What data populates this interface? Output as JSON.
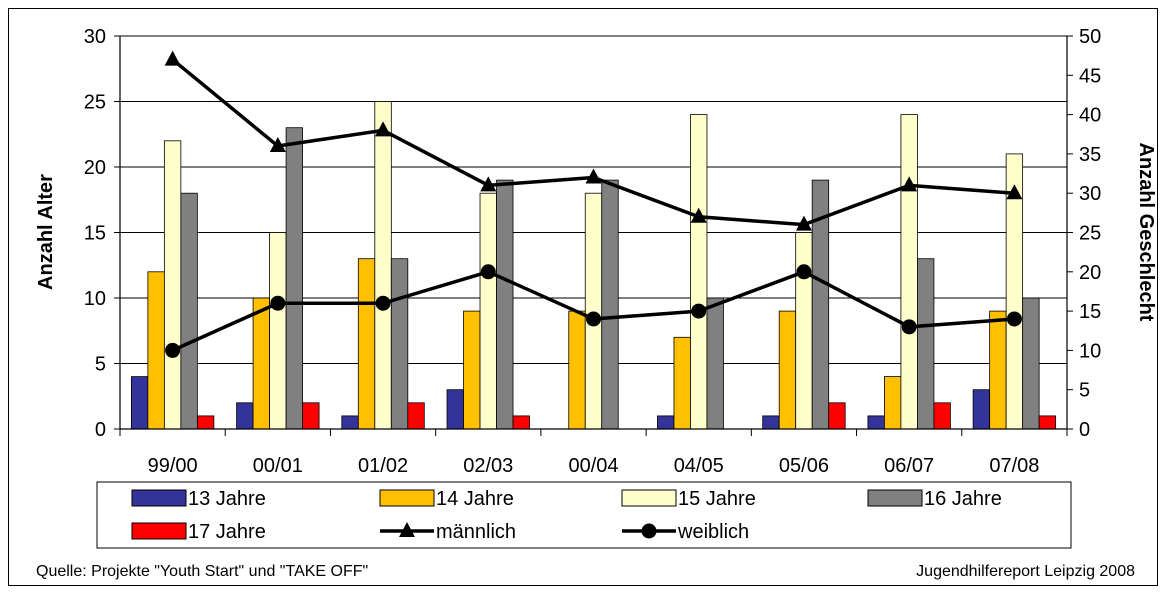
{
  "chart_data": {
    "type": "bar",
    "categories": [
      "99/00",
      "00/01",
      "01/02",
      "02/03",
      "00/04",
      "04/05",
      "05/06",
      "06/07",
      "07/08"
    ],
    "ylabel": "Anzahl Alter",
    "y2label": "Anzahl Geschlecht",
    "ylim": [
      0,
      30
    ],
    "y2lim": [
      0,
      50
    ],
    "yticks": [
      "0",
      "5",
      "10",
      "15",
      "20",
      "25",
      "30"
    ],
    "y2ticks": [
      "0",
      "5",
      "10",
      "15",
      "20",
      "25",
      "30",
      "35",
      "40",
      "45",
      "50"
    ],
    "grid": "horizontal",
    "legend_position": "bottom",
    "series": [
      {
        "name": "13 Jahre",
        "kind": "bar",
        "axis": "left",
        "color": "#333399",
        "values": [
          4,
          2,
          1,
          3,
          0,
          1,
          1,
          1,
          3
        ]
      },
      {
        "name": "14 Jahre",
        "kind": "bar",
        "axis": "left",
        "color": "#FFC000",
        "values": [
          12,
          10,
          13,
          9,
          9,
          7,
          9,
          4,
          9
        ]
      },
      {
        "name": "15 Jahre",
        "kind": "bar",
        "axis": "left",
        "color": "#FFFFCC",
        "values": [
          22,
          15,
          25,
          18,
          18,
          24,
          15,
          24,
          21
        ]
      },
      {
        "name": "16 Jahre",
        "kind": "bar",
        "axis": "left",
        "color": "#808080",
        "values": [
          18,
          23,
          13,
          19,
          19,
          10,
          19,
          13,
          10
        ]
      },
      {
        "name": "17 Jahre",
        "kind": "bar",
        "axis": "left",
        "color": "#FF0000",
        "values": [
          1,
          2,
          2,
          1,
          0,
          0,
          2,
          2,
          1
        ]
      },
      {
        "name": "männlich",
        "kind": "line",
        "axis": "right",
        "marker": "triangle",
        "color": "#000000",
        "values": [
          47,
          36,
          38,
          31,
          32,
          27,
          26,
          31,
          30
        ]
      },
      {
        "name": "weiblich",
        "kind": "line",
        "axis": "right",
        "marker": "circle",
        "color": "#000000",
        "values": [
          10,
          16,
          16,
          20,
          14,
          15,
          20,
          13,
          14
        ]
      }
    ]
  },
  "footer": {
    "source": "Quelle: Projekte \"Youth Start\" und \"TAKE OFF\"",
    "report": "Jugendhilfereport Leipzig 2008"
  }
}
